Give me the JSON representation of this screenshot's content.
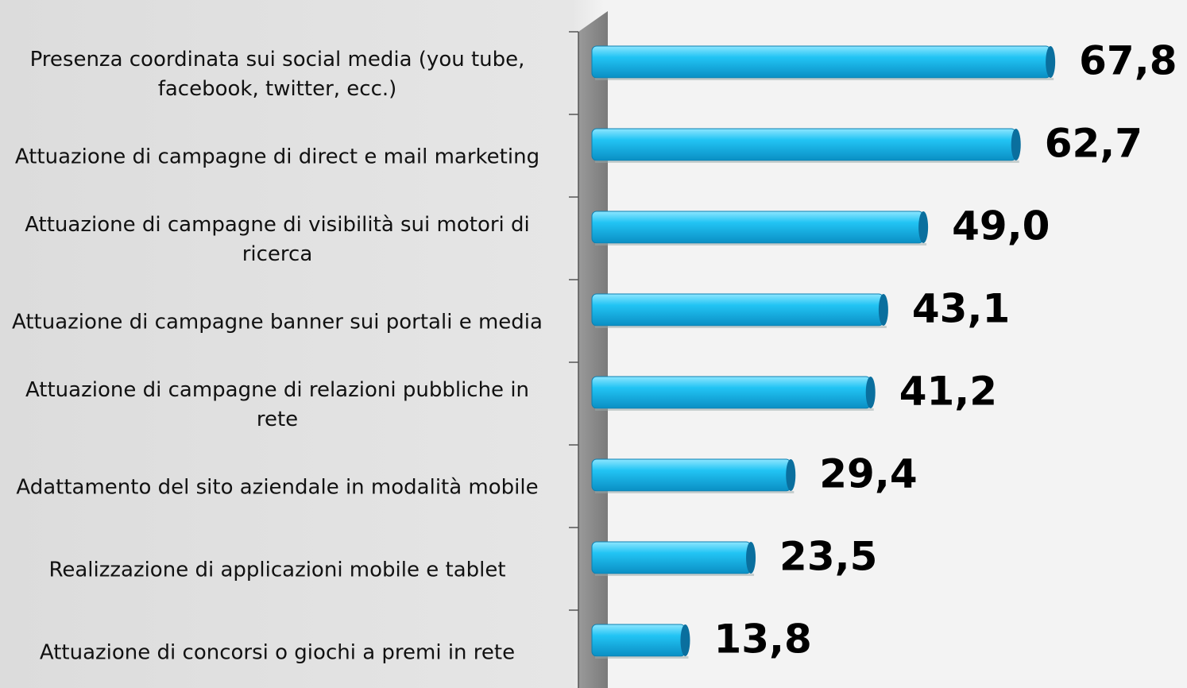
{
  "chart_data": {
    "type": "bar",
    "orientation": "horizontal",
    "categories": [
      "Presenza coordinata sui social media (you tube, facebook, twitter, ecc.)",
      "Attuazione di campagne di direct e mail marketing",
      "Attuazione di campagne di visibilità sui motori di ricerca",
      "Attuazione di campagne banner sui portali e media",
      "Attuazione di campagne di relazioni pubbliche in rete",
      "Adattamento del sito aziendale in modalità mobile",
      "Realizzazione di applicazioni mobile e tablet",
      "Attuazione di concorsi o giochi a premi in rete"
    ],
    "values": [
      67.8,
      62.7,
      49.0,
      43.1,
      41.2,
      29.4,
      23.5,
      13.8
    ],
    "value_labels": [
      "67,8",
      "62,7",
      "49,0",
      "43,1",
      "41,2",
      "29,4",
      "23,5",
      "13,8"
    ],
    "color": "#1ab8ec",
    "xlim": [
      0,
      80
    ]
  }
}
